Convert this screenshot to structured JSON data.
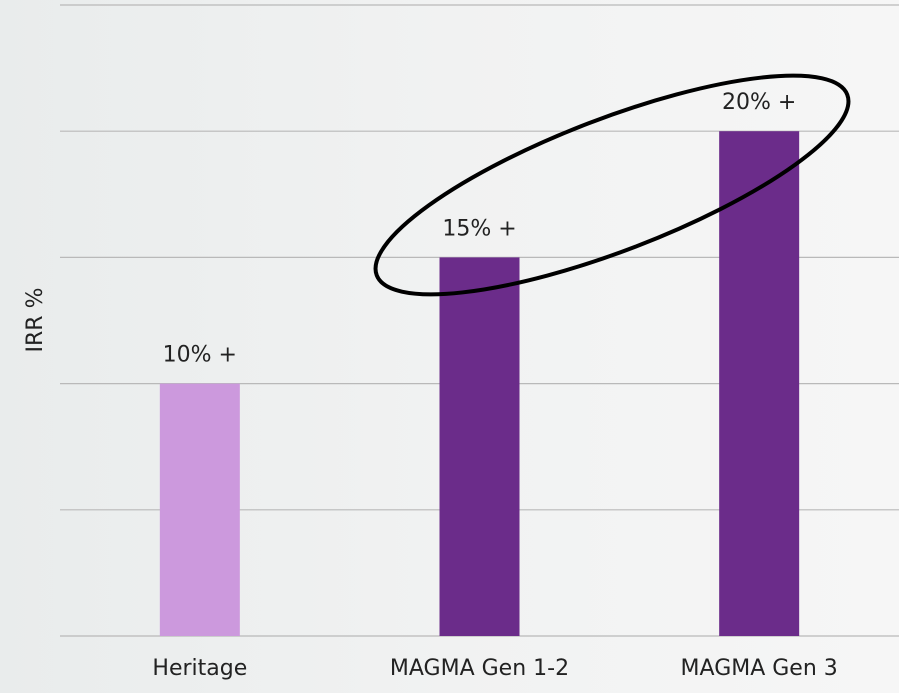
{
  "chart_data": {
    "type": "bar",
    "y_label": "IRR %",
    "categories": [
      "Heritage",
      "MAGMA Gen 1-2",
      "MAGMA Gen 3"
    ],
    "values": [
      10,
      15,
      20
    ],
    "value_labels": [
      "10% +",
      "15% +",
      "20% +"
    ],
    "colors": [
      "#cc99dd",
      "#6b2c8a",
      "#6b2c8a"
    ],
    "ylim": [
      0,
      25
    ],
    "yticks": [
      0,
      5,
      10,
      15,
      20,
      25
    ],
    "grid": true
  }
}
